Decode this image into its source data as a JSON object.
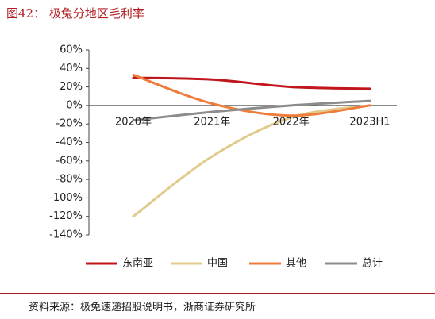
{
  "figure": {
    "title": "图42：  极兔分地区毛利率",
    "source": "资料来源：极兔速递招股说明书，浙商证券研究所"
  },
  "chart_data": {
    "type": "line",
    "categories": [
      "2020年",
      "2021年",
      "2022年",
      "2023H1"
    ],
    "ylim": [
      -140,
      60
    ],
    "yticks": [
      -140,
      -120,
      -100,
      -80,
      -60,
      -40,
      -20,
      0,
      20,
      40,
      60
    ],
    "ytick_labels": [
      "-140%",
      "-120%",
      "-100%",
      "-80%",
      "-60%",
      "-40%",
      "-20%",
      "0%",
      "20%",
      "40%",
      "60%"
    ],
    "grid": false,
    "legend_position": "bottom",
    "series": [
      {
        "name": "东南亚",
        "color": "#c0161c",
        "values": [
          30,
          28,
          20,
          18
        ]
      },
      {
        "name": "中国",
        "color": "#e0cb8c",
        "values": [
          -120,
          -55,
          -13,
          0
        ]
      },
      {
        "name": "其他",
        "color": "#ee7d3b",
        "values": [
          33,
          2,
          -11,
          0
        ]
      },
      {
        "name": "总计",
        "color": "#8c8c8c",
        "values": [
          -16,
          -7,
          0,
          5
        ]
      }
    ]
  }
}
